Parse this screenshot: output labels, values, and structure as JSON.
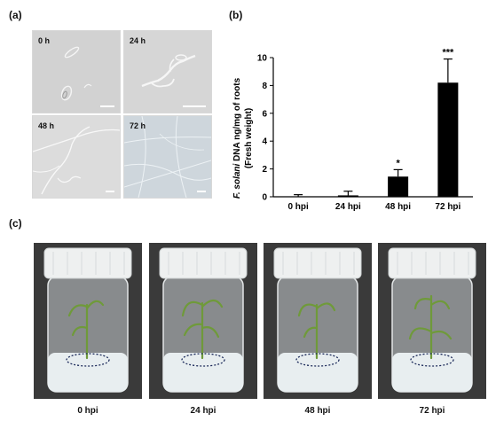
{
  "panels": {
    "a_label": "(a)",
    "b_label": "(b)",
    "c_label": "(c)"
  },
  "micrographs": [
    {
      "label": "0 h"
    },
    {
      "label": "24 h"
    },
    {
      "label": "48 h"
    },
    {
      "label": "72 h"
    }
  ],
  "photos": [
    {
      "label": "0 hpi"
    },
    {
      "label": "24 hpi"
    },
    {
      "label": "48 hpi"
    },
    {
      "label": "72 hpi"
    }
  ],
  "chart_data": {
    "type": "bar",
    "categories": [
      "0 hpi",
      "24 hpi",
      "48 hpi",
      "72 hpi"
    ],
    "values": [
      0.0,
      0.1,
      1.45,
      8.2
    ],
    "errors": [
      0.15,
      0.3,
      0.5,
      1.7
    ],
    "significance": [
      "",
      "",
      "*",
      "***"
    ],
    "ylabel_italic": "F. solani",
    "ylabel_rest": " DNA ng/mg of roots",
    "ylabel_line2": "(Fresh weight)",
    "xlabel": "",
    "ylim": [
      0,
      10
    ],
    "yticks": [
      "0",
      "2",
      "4",
      "6",
      "8",
      "10"
    ],
    "bar_color": "#000000"
  }
}
